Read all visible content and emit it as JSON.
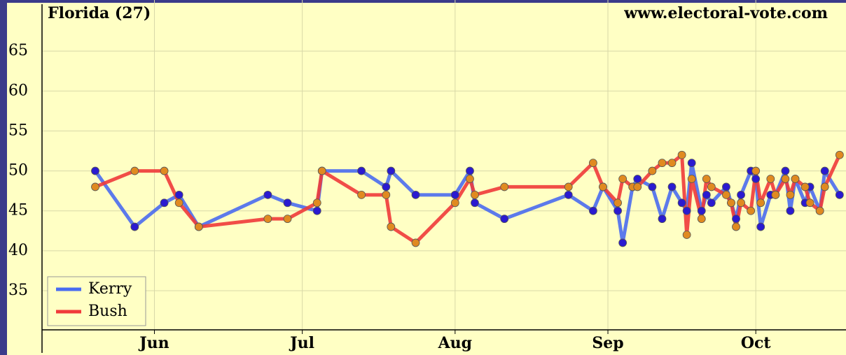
{
  "chart_data": {
    "type": "line",
    "title": "Florida (27)",
    "annotations": [
      "www.electoral-vote.com"
    ],
    "x": [
      156,
      164,
      170,
      173,
      177,
      191,
      195,
      201,
      202,
      210,
      215,
      216,
      221,
      229,
      232,
      233,
      239,
      252,
      257,
      259,
      262,
      263,
      265,
      266,
      269,
      271,
      273,
      275,
      276,
      277,
      279,
      280,
      281,
      284,
      285,
      286,
      287,
      289,
      290,
      291,
      293,
      294,
      296,
      297,
      298,
      300,
      301,
      303,
      304,
      307
    ],
    "series": [
      {
        "name": "Kerry",
        "color": "#4a6cf0",
        "marker_color": "#2a1ad0",
        "values": [
          50,
          43,
          46,
          47,
          43,
          47,
          46,
          45,
          50,
          50,
          48,
          50,
          47,
          47,
          50,
          46,
          44,
          47,
          45,
          48,
          45,
          41,
          48,
          49,
          48,
          44,
          48,
          46,
          45,
          51,
          45,
          47,
          46,
          48,
          46,
          44,
          47,
          50,
          49,
          43,
          47,
          47,
          50,
          45,
          49,
          46,
          48,
          45,
          50,
          47
        ]
      },
      {
        "name": "Bush",
        "color": "#f03a3a",
        "marker_color": "#e08a20",
        "values": [
          48,
          50,
          50,
          46,
          43,
          44,
          44,
          46,
          50,
          47,
          47,
          43,
          41,
          46,
          49,
          47,
          48,
          48,
          51,
          48,
          46,
          49,
          48,
          48,
          50,
          51,
          51,
          52,
          42,
          49,
          44,
          49,
          48,
          47,
          46,
          43,
          46,
          45,
          50,
          46,
          49,
          47,
          49,
          47,
          49,
          48,
          46,
          45,
          48,
          52
        ]
      }
    ],
    "xlim": [
      145.2,
      308.3
    ],
    "xticks": [
      {
        "value": 168,
        "label": "Jun"
      },
      {
        "value": 198,
        "label": "Jul"
      },
      {
        "value": 229,
        "label": "Aug"
      },
      {
        "value": 260,
        "label": "Sep"
      },
      {
        "value": 290,
        "label": "Oct"
      }
    ],
    "ylim": [
      30.1,
      71.4
    ],
    "yticks": [
      35,
      40,
      45,
      50,
      55,
      60,
      65
    ],
    "grid": true,
    "legend": "lower left"
  }
}
